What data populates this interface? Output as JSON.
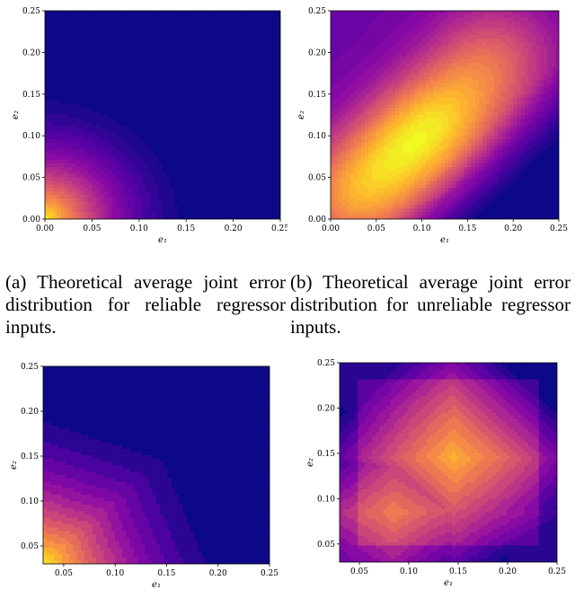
{
  "captions": {
    "a": "(a) Theoretical average joint er­ror distribution for reliable re­gressor inputs.",
    "b": "(b) Theoretical average joint er­ror distribution for unreliable re­gressor inputs."
  },
  "colors": {
    "colormap": "plasma",
    "low": "#0d0887",
    "high": "#f0f921",
    "contour_line": "#ffffff"
  },
  "chart_data": [
    {
      "type": "contour",
      "id": "a",
      "xlabel": "e₁",
      "ylabel": "e₂",
      "xlim": [
        0.0,
        0.25
      ],
      "ylim": [
        0.0,
        0.25
      ],
      "xticks": [
        "0.00",
        "0.05",
        "0.10",
        "0.15",
        "0.20",
        "0.25"
      ],
      "yticks": [
        "0.00",
        "0.05",
        "0.10",
        "0.15",
        "0.20",
        "0.25"
      ],
      "peak": [
        0.0,
        0.0
      ],
      "contour_outer_radius": 0.18
    },
    {
      "type": "contour",
      "id": "b",
      "xlabel": "e₁",
      "ylabel": "e₂",
      "xlim": [
        0.0,
        0.25
      ],
      "ylim": [
        0.0,
        0.25
      ],
      "xticks": [
        "0.00",
        "0.05",
        "0.10",
        "0.15",
        "0.20",
        "0.25"
      ],
      "yticks": [
        "0.00",
        "0.05",
        "0.10",
        "0.15",
        "0.20",
        "0.25"
      ],
      "peak": [
        0.1,
        0.1
      ]
    },
    {
      "type": "contour",
      "id": "c",
      "xlabel": "e₁",
      "ylabel": "e₂",
      "xlim": [
        0.03,
        0.25
      ],
      "ylim": [
        0.03,
        0.25
      ],
      "xticks": [
        "0.05",
        "0.10",
        "0.15",
        "0.20",
        "0.25"
      ],
      "yticks": [
        "0.05",
        "0.10",
        "0.15",
        "0.20",
        "0.25"
      ],
      "peak": [
        0.03,
        0.03
      ]
    },
    {
      "type": "contour",
      "id": "d",
      "xlabel": "e₁",
      "ylabel": "e₂",
      "xlim": [
        0.03,
        0.25
      ],
      "ylim": [
        0.03,
        0.25
      ],
      "xticks": [
        "0.05",
        "0.10",
        "0.15",
        "0.20",
        "0.25"
      ],
      "yticks": [
        "0.05",
        "0.10",
        "0.15",
        "0.20",
        "0.25"
      ],
      "peak": [
        0.145,
        0.145
      ],
      "secondary_peak": [
        0.085,
        0.085
      ]
    }
  ]
}
